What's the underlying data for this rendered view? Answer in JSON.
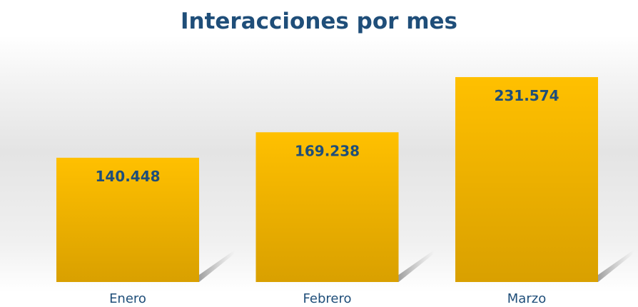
{
  "chart_data": {
    "type": "bar",
    "title": "Interacciones por mes",
    "categories": [
      "Enero",
      "Febrero",
      "Marzo"
    ],
    "values": [
      140448,
      169238,
      231574
    ],
    "value_labels": [
      "140.448",
      "169.238",
      "231.574"
    ],
    "color": "#ffc000"
  }
}
